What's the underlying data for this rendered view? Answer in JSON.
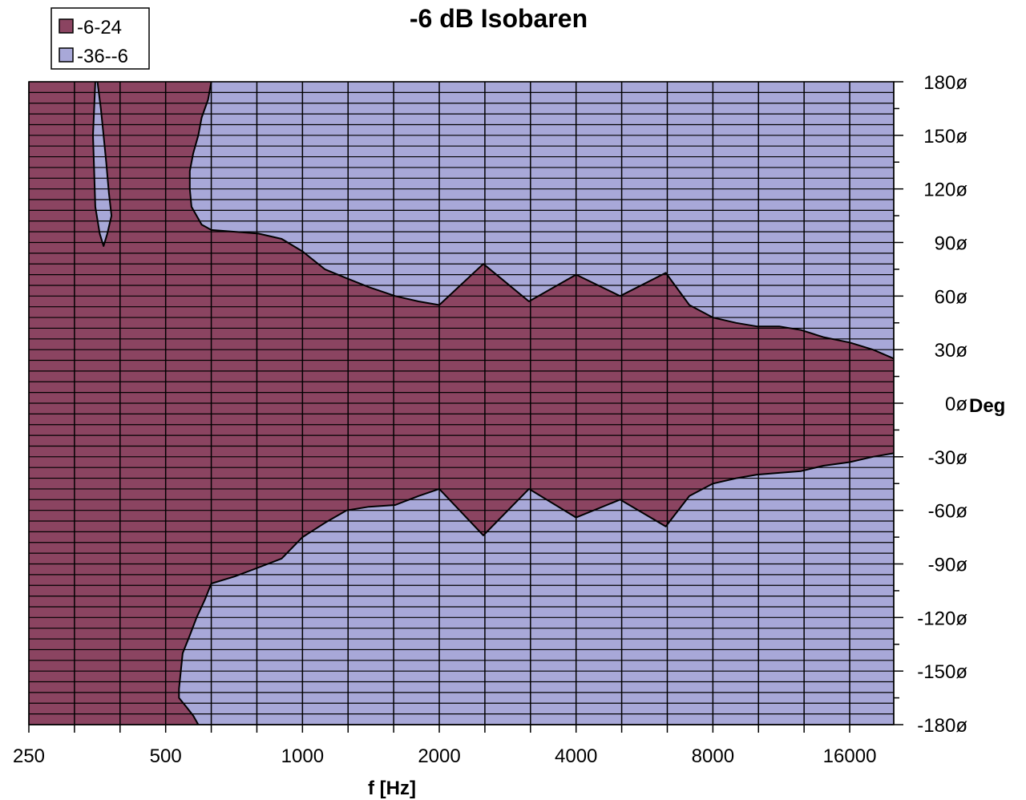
{
  "chart_data": {
    "type": "area",
    "title": "-6 dB Isobaren",
    "xlabel": "f [Hz]",
    "ylabel": "Deg",
    "x_scale": "log2",
    "x_tick_labels": [
      "250",
      "500",
      "1000",
      "2000",
      "4000",
      "8000",
      "16000"
    ],
    "x_ticks": [
      250,
      500,
      1000,
      2000,
      4000,
      8000,
      16000
    ],
    "xlim": [
      250,
      20000
    ],
    "ylim": [
      -180,
      180
    ],
    "y_ticks": [
      180,
      150,
      120,
      90,
      60,
      30,
      0,
      -30,
      -60,
      -90,
      -120,
      -150,
      -180
    ],
    "y_tick_labels": [
      "180ø",
      "150ø",
      "120ø",
      "90ø",
      "60ø",
      "30ø",
      "0ø",
      "-30ø",
      "-60ø",
      "-90ø",
      "-120ø",
      "-150ø",
      "-180ø"
    ],
    "grid": true,
    "legend_position": "top-left",
    "legend": [
      {
        "label": "-6-24",
        "color": "#8B4461"
      },
      {
        "label": "-36--6",
        "color": "#A8A8D8"
      }
    ],
    "series": [
      {
        "name": "-6-24",
        "role": "upper_boundary",
        "x": [
          630,
          710,
          800,
          900,
          1000,
          1120,
          1250,
          1400,
          1600,
          1800,
          2000,
          2500,
          3150,
          4000,
          5000,
          6300,
          7100,
          8000,
          9000,
          10000,
          11200,
          12500,
          14000,
          16000,
          18000,
          20000
        ],
        "y": [
          97,
          96,
          95,
          92,
          85,
          75,
          70,
          65,
          60,
          57,
          55,
          78,
          57,
          72,
          60,
          73,
          55,
          48,
          45,
          43,
          43,
          41,
          37,
          34,
          30,
          25
        ]
      },
      {
        "name": "-6-24",
        "role": "lower_boundary",
        "x": [
          630,
          710,
          800,
          900,
          1000,
          1120,
          1250,
          1400,
          1600,
          1800,
          2000,
          2500,
          3150,
          4000,
          5000,
          6300,
          7100,
          8000,
          9000,
          10000,
          11200,
          12500,
          14000,
          16000,
          18000,
          20000
        ],
        "y": [
          -101,
          -97,
          -92,
          -87,
          -75,
          -67,
          -60,
          -58,
          -57,
          -52,
          -48,
          -74,
          -48,
          -64,
          -54,
          -69,
          -52,
          -45,
          -42,
          -40,
          -39,
          -38,
          -35,
          -33,
          -30,
          -28
        ]
      },
      {
        "name": "-6-24",
        "role": "left_boundary_upper",
        "y": [
          180,
          170,
          160,
          150,
          140,
          130,
          120,
          110,
          100,
          97
        ],
        "x": [
          630,
          620,
          600,
          590,
          575,
          565,
          565,
          570,
          600,
          630
        ]
      },
      {
        "name": "-6-24",
        "role": "left_boundary_lower",
        "y": [
          -101,
          -110,
          -120,
          -130,
          -140,
          -150,
          -160,
          -165,
          -170,
          -175,
          -180
        ],
        "x": [
          630,
          610,
          585,
          565,
          545,
          540,
          535,
          535,
          555,
          575,
          590
        ]
      },
      {
        "name": "-36--6",
        "role": "inner_island",
        "x": [
          354,
          360,
          365,
          370,
          375,
          380,
          372,
          365,
          358,
          350,
          346,
          350
        ],
        "y": [
          180,
          165,
          150,
          135,
          118,
          105,
          95,
          88,
          95,
          110,
          150,
          180
        ]
      }
    ]
  }
}
